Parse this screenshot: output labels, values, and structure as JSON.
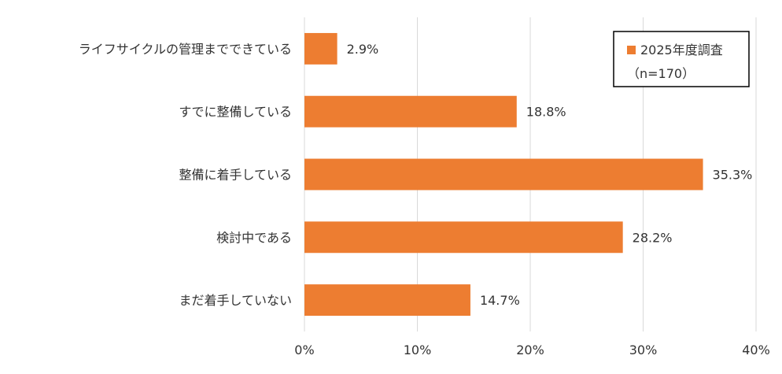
{
  "chart_data": {
    "type": "bar",
    "orientation": "horizontal",
    "categories": [
      "ライフサイクルの管理までできている",
      "すでに整備している",
      "整備に着手している",
      "検討中である",
      "まだ着手していない"
    ],
    "series": [
      {
        "name": "2025年度調査",
        "values": [
          2.9,
          18.8,
          35.3,
          28.2,
          14.7
        ],
        "color": "#ED7D31"
      }
    ],
    "data_labels": [
      "2.9%",
      "18.8%",
      "35.3%",
      "28.2%",
      "14.7%"
    ],
    "xlim": [
      0,
      40
    ],
    "x_ticks": [
      0,
      10,
      20,
      30,
      40
    ],
    "x_tick_labels": [
      "0%",
      "10%",
      "20%",
      "30%",
      "40%"
    ],
    "grid": true,
    "gridline_color": "#D9D9D9",
    "legend": {
      "placement": "top-right",
      "entry": "2025年度調査",
      "note": "（n=170）"
    }
  }
}
